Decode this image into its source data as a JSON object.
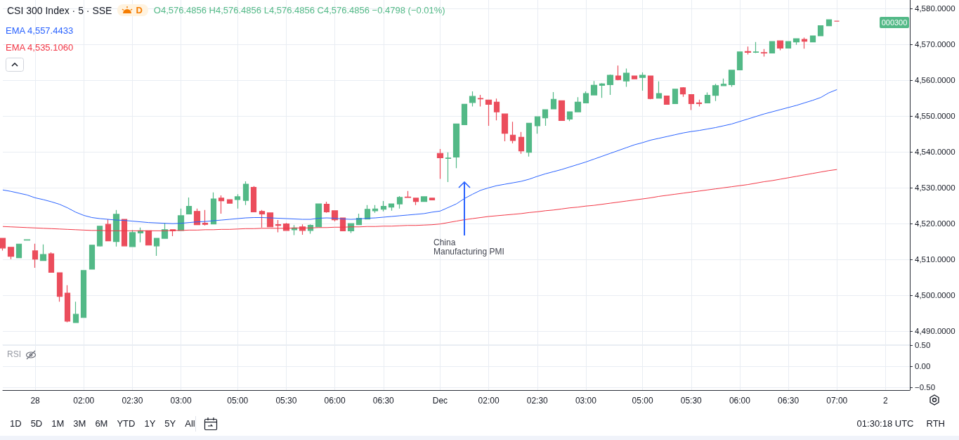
{
  "chart_data": [
    {
      "type": "candlestick",
      "title": "CSI 300 Index · 5 · SSE",
      "annotations": [
        "D",
        "O4,576.4856 H4,576.4856 L4,576.4856 C4,576.4856 −0.4798 (−0.01%)",
        "000300",
        "China Manufacturing PMI",
        "1D",
        "5D",
        "1M",
        "3M",
        "6M",
        "YTD",
        "1Y",
        "5Y",
        "All",
        "01:30:18 UTC",
        "RTH"
      ],
      "categories": [
        null,
        null,
        null,
        null,
        "28",
        null,
        null,
        null,
        null,
        null,
        "02:00",
        null,
        null,
        null,
        null,
        null,
        "02:30",
        null,
        null,
        null,
        null,
        null,
        "03:00",
        null,
        null,
        null,
        null,
        null,
        null,
        "05:00",
        null,
        null,
        null,
        null,
        null,
        "05:30",
        null,
        null,
        null,
        null,
        null,
        "06:00",
        null,
        null,
        null,
        null,
        null,
        "06:30",
        null,
        null,
        null,
        null,
        null,
        null,
        "Dec",
        null,
        null,
        null,
        null,
        null,
        "02:00",
        null,
        null,
        null,
        null,
        null,
        "02:30",
        null,
        null,
        null,
        null,
        null,
        "03:00",
        null,
        null,
        null,
        null,
        null,
        null,
        "05:00",
        null,
        null,
        null,
        null,
        null,
        "05:30",
        null,
        null,
        null,
        null,
        null,
        "06:00",
        null,
        null,
        null,
        null,
        null,
        "06:30",
        null,
        null,
        null,
        null,
        null,
        "07:00",
        null,
        null,
        null,
        null,
        null,
        "2",
        null,
        null,
        null
      ],
      "ohlc": [
        [
          4515.9,
          4516.0,
          4512.5,
          4513.2
        ],
        [
          4513.4,
          4513.4,
          4510.1,
          4510.9
        ],
        [
          4510.5,
          4514.3,
          4510.5,
          4514.3
        ],
        [
          4515.4,
          4515.5,
          4515.4,
          4515.5
        ],
        [
          4512.4,
          4514.4,
          4507.7,
          4510.1
        ],
        [
          4509.7,
          4514.2,
          4509.7,
          4511.4
        ],
        [
          4511.6,
          4512.0,
          4506.4,
          4506.4
        ],
        [
          4506.3,
          4506.3,
          4498.2,
          4499.7
        ],
        [
          4500.6,
          4502.8,
          4492.5,
          4492.8
        ],
        [
          4492.4,
          4498.2,
          4492.4,
          4494.7
        ],
        [
          4493.8,
          4506.9,
          4493.8,
          4506.9
        ],
        [
          4507.3,
          4514.0,
          4507.3,
          4514.0
        ],
        [
          4513.8,
          4519.3,
          4513.6,
          4519.3
        ],
        [
          4519.8,
          4521.2,
          4515.2,
          4515.2
        ],
        [
          4515.0,
          4523.8,
          4513.6,
          4522.6
        ],
        [
          4521.2,
          4521.2,
          4513.8,
          4513.8
        ],
        [
          4513.6,
          4518.2,
          4513.5,
          4517.5
        ],
        [
          4517.4,
          4518.9,
          4514.8,
          4518.0
        ],
        [
          4518.0,
          4518.0,
          4514.0,
          4514.0
        ],
        [
          4513.8,
          4515.9,
          4511.0,
          4515.9
        ],
        [
          4515.9,
          4520.2,
          4515.9,
          4518.3
        ],
        [
          4518.3,
          4518.4,
          4516.5,
          4518.0
        ],
        [
          4518.1,
          4524.2,
          4518.1,
          4522.2
        ],
        [
          4522.7,
          4527.3,
          4522.7,
          4524.8
        ],
        [
          4523.4,
          4524.2,
          4519.7,
          4519.7
        ],
        [
          4520.1,
          4523.8,
          4519.5,
          4519.8
        ],
        [
          4519.9,
          4528.7,
          4519.9,
          4526.9
        ],
        [
          4527.1,
          4527.9,
          4522.8,
          4526.4
        ],
        [
          4526.7,
          4526.7,
          4525.7,
          4525.7
        ],
        [
          4526.7,
          4528.2,
          4524.2,
          4527.5
        ],
        [
          4526.5,
          4531.8,
          4525.2,
          4531.0
        ],
        [
          4530.1,
          4530.5,
          4523.3,
          4523.3
        ],
        [
          4523.4,
          4523.8,
          4518.9,
          4522.7
        ],
        [
          4523.0,
          4523.0,
          4519.1,
          4519.1
        ],
        [
          4519.7,
          4521.0,
          4517.6,
          4519.5
        ],
        [
          4519.9,
          4520.2,
          4518.1,
          4518.1
        ],
        [
          4518.3,
          4519.6,
          4516.8,
          4518.8
        ],
        [
          4519.1,
          4519.8,
          4516.9,
          4518.1
        ],
        [
          4518.1,
          4519.8,
          4517.2,
          4519.5
        ],
        [
          4519.1,
          4525.5,
          4519.1,
          4525.5
        ],
        [
          4525.4,
          4526.1,
          4523.0,
          4523.3
        ],
        [
          4523.6,
          4523.6,
          4520.6,
          4521.1
        ],
        [
          4521.6,
          4521.6,
          4518.0,
          4518.0
        ],
        [
          4518.0,
          4520.0,
          4517.4,
          4520.0
        ],
        [
          4519.7,
          4522.8,
          4519.7,
          4521.5
        ],
        [
          4521.3,
          4525.2,
          4521.3,
          4524.0
        ],
        [
          4523.6,
          4525.2,
          4523.0,
          4524.1
        ],
        [
          4524.0,
          4526.3,
          4523.4,
          4524.8
        ],
        [
          4524.6,
          4525.5,
          4523.6,
          4525.5
        ],
        [
          4525.5,
          4527.7,
          4524.2,
          4527.3
        ],
        [
          4527.4,
          4529.1,
          4527.3,
          4527.3
        ],
        [
          4527.1,
          4527.1,
          4525.2,
          4526.2
        ],
        [
          4526.2,
          4527.5,
          4526.2,
          4527.5
        ],
        [
          4527.1,
          4527.1,
          4526.6,
          4526.6
        ],
        [
          4539.6,
          4540.8,
          4532.5,
          4538.4
        ],
        [
          4538.2,
          4539.9,
          4531.6,
          4538.3
        ],
        [
          4538.6,
          4547.8,
          4535.5,
          4547.8
        ],
        [
          4547.6,
          4553.3,
          4547.6,
          4553.3
        ],
        [
          4553.8,
          4556.9,
          4552.7,
          4555.5
        ],
        [
          4554.9,
          4555.9,
          4552.7,
          4554.8
        ],
        [
          4554.5,
          4554.5,
          4547.3,
          4553.3
        ],
        [
          4553.9,
          4554.9,
          4548.8,
          4551.2
        ],
        [
          4550.6,
          4550.6,
          4543.0,
          4545.2
        ],
        [
          4544.7,
          4548.4,
          4542.4,
          4543.2
        ],
        [
          4544.1,
          4545.6,
          4539.5,
          4540.3
        ],
        [
          4539.9,
          4548.0,
          4538.7,
          4548.0
        ],
        [
          4547.3,
          4549.8,
          4545.1,
          4549.8
        ],
        [
          4549.5,
          4551.8,
          4547.3,
          4551.8
        ],
        [
          4552.0,
          4556.7,
          4552.0,
          4554.7
        ],
        [
          4554.3,
          4554.3,
          4548.8,
          4548.8
        ],
        [
          4549.2,
          4551.2,
          4548.6,
          4551.2
        ],
        [
          4551.2,
          4555.3,
          4551.2,
          4553.9
        ],
        [
          4553.7,
          4556.9,
          4553.7,
          4556.3
        ],
        [
          4555.9,
          4559.8,
          4555.9,
          4558.6
        ],
        [
          4558.6,
          4559.2,
          4555.1,
          4559.0
        ],
        [
          4558.8,
          4561.6,
          4555.9,
          4561.4
        ],
        [
          4561.2,
          4564.1,
          4560.0,
          4560.2
        ],
        [
          4559.8,
          4563.3,
          4558.2,
          4562.0
        ],
        [
          4561.2,
          4561.2,
          4560.4,
          4560.4
        ],
        [
          4560.8,
          4562.2,
          4557.1,
          4561.4
        ],
        [
          4561.2,
          4561.2,
          4554.7,
          4554.9
        ],
        [
          4555.0,
          4559.7,
          4555.0,
          4556.3
        ],
        [
          4555.6,
          4555.6,
          4553.3,
          4553.3
        ],
        [
          4553.5,
          4557.5,
          4553.5,
          4557.5
        ],
        [
          4557.9,
          4558.1,
          4555.4,
          4556.2
        ],
        [
          4556.0,
          4556.0,
          4551.7,
          4553.5
        ],
        [
          4553.7,
          4554.6,
          4552.7,
          4553.5
        ],
        [
          4553.7,
          4556.6,
          4553.7,
          4555.8
        ],
        [
          4555.8,
          4559.0,
          4554.2,
          4558.5
        ],
        [
          4558.5,
          4560.5,
          4558.5,
          4558.9
        ],
        [
          4558.8,
          4562.8,
          4558.2,
          4562.8
        ],
        [
          4562.9,
          4567.9,
          4562.9,
          4567.9
        ],
        [
          4568.0,
          4569.4,
          4567.2,
          4567.8
        ],
        [
          4567.8,
          4570.7,
          4567.6,
          4567.9
        ],
        [
          4567.7,
          4568.7,
          4566.6,
          4567.6
        ],
        [
          4567.6,
          4570.8,
          4567.6,
          4570.8
        ],
        [
          4571.0,
          4571.0,
          4568.4,
          4569.0
        ],
        [
          4569.0,
          4570.8,
          4569.0,
          4570.8
        ],
        [
          4570.7,
          4571.6,
          4569.9,
          4571.6
        ],
        [
          4571.4,
          4571.9,
          4568.8,
          4570.9
        ],
        [
          4570.7,
          4572.5,
          4570.7,
          4572.4
        ],
        [
          4572.4,
          4575.2,
          4572.4,
          4575.2
        ],
        [
          4575.2,
          4576.9,
          4575.2,
          4576.9
        ],
        [
          4576.5,
          4576.5,
          4576.5,
          4576.5
        ],
        null,
        null,
        null,
        null,
        null,
        null,
        null,
        null,
        null
      ],
      "series": [
        {
          "type": "line",
          "name": "EMA 4,557.4433",
          "color": "#2962ff",
          "values": [
            4529.4,
            4529.0,
            4528.5,
            4528.0,
            4527.2,
            4526.7,
            4526.1,
            4525.4,
            4524.4,
            4523.2,
            4522.3,
            4521.7,
            4521.4,
            4521.2,
            4521.0,
            4520.9,
            4520.7,
            4520.5,
            4520.3,
            4520.2,
            4520.1,
            4520.0,
            4520.1,
            4520.3,
            4520.5,
            4520.6,
            4520.8,
            4521.0,
            4521.2,
            4521.4,
            4521.6,
            4521.7,
            4521.7,
            4521.6,
            4521.5,
            4521.4,
            4521.3,
            4521.2,
            4521.2,
            4521.5,
            4521.6,
            4521.5,
            4521.3,
            4521.2,
            4521.3,
            4521.5,
            4521.6,
            4521.8,
            4522.0,
            4522.2,
            4522.4,
            4522.6,
            4522.8,
            4523.2,
            4523.5,
            4524.5,
            4525.5,
            4527.0,
            4528.2,
            4529.3,
            4530.0,
            4530.6,
            4531.0,
            4531.4,
            4531.8,
            4532.4,
            4533.2,
            4533.9,
            4534.5,
            4535.1,
            4535.8,
            4536.5,
            4537.2,
            4538.0,
            4538.8,
            4539.6,
            4540.4,
            4541.2,
            4542.0,
            4542.6,
            4543.3,
            4543.8,
            4544.3,
            4544.8,
            4545.3,
            4545.7,
            4546.0,
            4546.4,
            4546.8,
            4547.3,
            4547.8,
            4548.5,
            4549.2,
            4549.9,
            4550.6,
            4551.2,
            4551.8,
            4552.4,
            4553.0,
            4553.7,
            4554.4,
            4555.2,
            4556.5,
            4557.4,
            null,
            null,
            null,
            null,
            null,
            null,
            null,
            null,
            null
          ]
        },
        {
          "type": "line",
          "name": "EMA 4,535.1060",
          "color": "#f23645",
          "values": [
            4519.2,
            4519.1,
            4519.0,
            4518.9,
            4518.8,
            4518.7,
            4518.6,
            4518.5,
            4518.4,
            4518.3,
            4518.2,
            4518.1,
            4518.1,
            4518.0,
            4518.0,
            4518.0,
            4518.0,
            4518.0,
            4518.0,
            4518.0,
            4518.0,
            4518.1,
            4518.1,
            4518.2,
            4518.2,
            4518.3,
            4518.3,
            4518.4,
            4518.4,
            4518.5,
            4518.6,
            4518.6,
            4518.7,
            4518.7,
            4518.7,
            4518.7,
            4518.8,
            4518.8,
            4518.8,
            4518.9,
            4518.9,
            4519.0,
            4519.0,
            4519.1,
            4519.1,
            4519.2,
            4519.2,
            4519.3,
            4519.3,
            4519.4,
            4519.5,
            4519.5,
            4519.6,
            4519.7,
            4519.9,
            4520.3,
            4520.7,
            4521.1,
            4521.4,
            4521.7,
            4522.0,
            4522.2,
            4522.4,
            4522.6,
            4522.8,
            4523.1,
            4523.3,
            4523.6,
            4523.8,
            4524.1,
            4524.4,
            4524.6,
            4524.9,
            4525.1,
            4525.4,
            4525.7,
            4526.0,
            4526.3,
            4526.6,
            4526.9,
            4527.2,
            4527.6,
            4527.9,
            4528.2,
            4528.5,
            4528.8,
            4529.1,
            4529.4,
            4529.7,
            4530.0,
            4530.3,
            4530.6,
            4530.9,
            4531.3,
            4531.7,
            4532.0,
            4532.4,
            4532.8,
            4533.2,
            4533.6,
            4534.0,
            4534.4,
            4534.8,
            4535.1,
            null,
            null,
            null,
            null,
            null,
            null,
            null,
            null,
            null
          ]
        }
      ],
      "ylim": [
        4486.3,
        4582.4
      ],
      "yticks": [
        {
          "value": 4490,
          "label": "4,490.0000"
        },
        {
          "value": 4500,
          "label": "4,500.0000"
        },
        {
          "value": 4510,
          "label": "4,510.0000"
        },
        {
          "value": 4520,
          "label": "4,520.0000"
        },
        {
          "value": 4530,
          "label": "4,530.0000"
        },
        {
          "value": 4540,
          "label": "4,540.0000"
        },
        {
          "value": 4550,
          "label": "4,550.0000"
        },
        {
          "value": 4560,
          "label": "4,560.0000"
        },
        {
          "value": 4570,
          "label": "4,570.0000"
        },
        {
          "value": 4580,
          "label": "4,580.0000"
        }
      ],
      "grid": true,
      "legend": "top left"
    },
    {
      "type": "other",
      "title": "RSI",
      "annotations": [
        "0.50",
        "0.00",
        "−0.50"
      ]
    }
  ]
}
